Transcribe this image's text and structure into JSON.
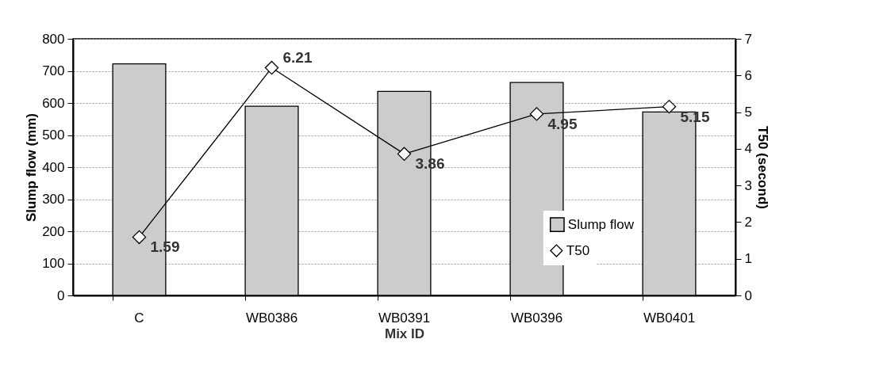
{
  "chart_data": {
    "type": "bar",
    "xlabel": "Mix ID",
    "ylabel": "Slump flow (mm)",
    "y2label": "T50 (second)",
    "categories": [
      "C",
      "WB0386",
      "WB0391",
      "WB0396",
      "WB0401"
    ],
    "series": [
      {
        "name": "Slump flow",
        "type": "bar",
        "color": "#cccccc",
        "values": [
          722,
          590,
          636,
          664,
          572
        ]
      },
      {
        "name": "T50",
        "type": "line",
        "axis": "y2",
        "color": "#000000",
        "marker": "diamond",
        "values": [
          1.59,
          6.21,
          3.86,
          4.95,
          5.15
        ],
        "value_labels": [
          "1.59",
          "6.21",
          "3.86",
          "4.95",
          "5.15"
        ]
      }
    ],
    "ylim": [
      0,
      800
    ],
    "yticks": [
      0,
      100,
      200,
      300,
      400,
      500,
      600,
      700,
      800
    ],
    "y2lim": [
      0,
      7
    ],
    "y2ticks": [
      0,
      1,
      2,
      3,
      4,
      5,
      6,
      7
    ],
    "grid": "y",
    "legend": "bottom right"
  }
}
